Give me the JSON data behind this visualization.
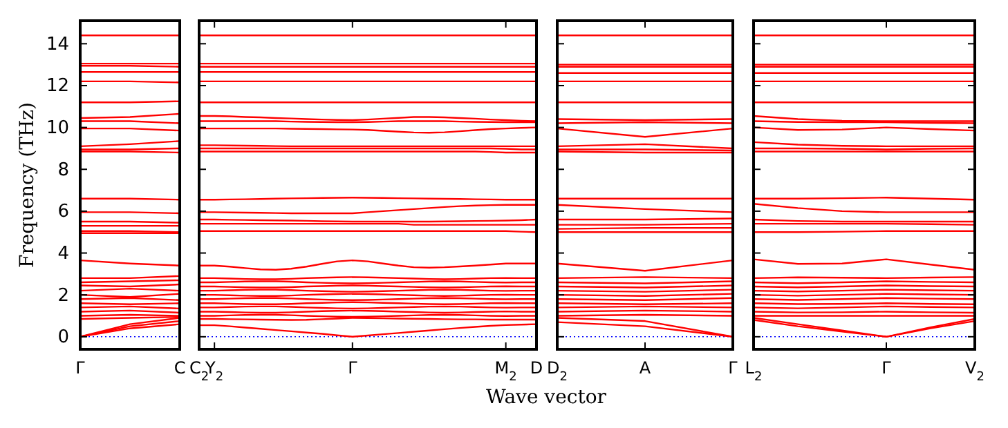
{
  "chart_data": [
    {
      "type": "line",
      "color": "#ff0000",
      "ylabel": "Frequency (THz)",
      "categories": [
        "Γ",
        null,
        "C"
      ],
      "ylim": [
        -0.6,
        15.1
      ],
      "yticks": [
        0,
        2,
        4,
        6,
        8,
        10,
        12,
        14
      ],
      "ref_lines": [
        {
          "axis": "y",
          "value": 0,
          "color": "#0000ff",
          "line_style": "dotted"
        }
      ],
      "series": [
        {
          "values": [
            14.4,
            14.4,
            14.4
          ]
        },
        {
          "values": [
            13.05,
            13.05,
            13.05
          ]
        },
        {
          "values": [
            12.95,
            12.95,
            12.9
          ]
        },
        {
          "values": [
            12.65,
            12.65,
            12.65
          ]
        },
        {
          "values": [
            12.2,
            12.2,
            12.15
          ]
        },
        {
          "values": [
            11.2,
            11.2,
            11.25
          ]
        },
        {
          "values": [
            10.45,
            10.5,
            10.65
          ]
        },
        {
          "values": [
            10.3,
            10.3,
            10.2
          ]
        },
        {
          "values": [
            9.95,
            9.95,
            9.85
          ]
        },
        {
          "values": [
            9.1,
            9.2,
            9.35
          ]
        },
        {
          "values": [
            8.95,
            8.95,
            9.0
          ]
        },
        {
          "values": [
            8.85,
            8.85,
            8.8
          ]
        },
        {
          "values": [
            6.6,
            6.6,
            6.55
          ]
        },
        {
          "values": [
            5.95,
            5.95,
            5.9
          ]
        },
        {
          "values": [
            5.5,
            5.5,
            5.45
          ]
        },
        {
          "values": [
            5.3,
            5.3,
            5.3
          ]
        },
        {
          "values": [
            5.05,
            5.05,
            5.0
          ]
        },
        {
          "values": [
            4.95,
            4.95,
            4.95
          ]
        },
        {
          "values": [
            3.65,
            3.5,
            3.4
          ]
        },
        {
          "values": [
            2.8,
            2.8,
            2.9
          ]
        },
        {
          "values": [
            2.6,
            2.65,
            2.7
          ]
        },
        {
          "values": [
            2.45,
            2.4,
            2.5
          ]
        },
        {
          "values": [
            2.2,
            2.3,
            2.2
          ]
        },
        {
          "values": [
            2.0,
            1.9,
            2.05
          ]
        },
        {
          "values": [
            1.8,
            1.85,
            1.75
          ]
        },
        {
          "values": [
            1.6,
            1.55,
            1.6
          ]
        },
        {
          "values": [
            1.4,
            1.45,
            1.35
          ]
        },
        {
          "values": [
            1.2,
            1.25,
            1.15
          ]
        },
        {
          "values": [
            1.0,
            1.05,
            1.0
          ]
        },
        {
          "values": [
            0.85,
            0.9,
            0.95
          ]
        },
        {
          "values": [
            0,
            0.4,
            0.6
          ]
        },
        {
          "values": [
            0,
            0.5,
            0.75
          ]
        },
        {
          "values": [
            0,
            0.6,
            0.9
          ]
        }
      ]
    },
    {
      "type": "line",
      "color": "#ff0000",
      "xlabel": "Wave vector",
      "tick_labels": "x",
      "categories": [
        "C$_{2}$",
        "Y$_{2}$",
        null,
        null,
        null,
        null,
        null,
        null,
        null,
        null,
        "Γ",
        null,
        null,
        null,
        null,
        null,
        null,
        null,
        null,
        null,
        "M$_{2}$",
        null,
        "D"
      ],
      "ylim": [
        -0.6,
        15.1
      ],
      "yticks": [
        0,
        2,
        4,
        6,
        8,
        10,
        12,
        14
      ],
      "ref_lines": [
        {
          "axis": "y",
          "value": 0,
          "color": "#0000ff",
          "line_style": "dotted"
        }
      ],
      "series": [
        {
          "values": [
            14.4,
            14.4,
            14.4,
            14.4,
            14.4,
            14.4,
            14.4,
            14.4,
            14.4,
            14.4,
            14.4,
            14.4,
            14.4,
            14.4,
            14.4,
            14.4,
            14.4,
            14.4,
            14.4,
            14.4,
            14.4,
            14.4,
            14.4
          ]
        },
        {
          "values": [
            13.05,
            13.05,
            13.05,
            13.05,
            13.05,
            13.05,
            13.05,
            13.05,
            13.05,
            13.05,
            13.05,
            13.05,
            13.05,
            13.05,
            13.05,
            13.05,
            13.05,
            13.05,
            13.05,
            13.05,
            13.05,
            13.05,
            13.05
          ]
        },
        {
          "values": [
            12.9,
            12.9,
            12.9,
            12.9,
            12.9,
            12.9,
            12.9,
            12.9,
            12.9,
            12.9,
            12.9,
            12.9,
            12.9,
            12.9,
            12.9,
            12.9,
            12.9,
            12.9,
            12.9,
            12.9,
            12.9,
            12.9,
            12.9
          ]
        },
        {
          "values": [
            12.65,
            12.65,
            12.65,
            12.65,
            12.65,
            12.65,
            12.65,
            12.65,
            12.65,
            12.65,
            12.65,
            12.65,
            12.65,
            12.65,
            12.65,
            12.65,
            12.65,
            12.65,
            12.65,
            12.65,
            12.65,
            12.65,
            12.65
          ]
        },
        {
          "values": [
            12.2,
            12.2,
            12.2,
            12.2,
            12.2,
            12.2,
            12.2,
            12.2,
            12.2,
            12.2,
            12.2,
            12.2,
            12.2,
            12.2,
            12.2,
            12.2,
            12.2,
            12.2,
            12.2,
            12.2,
            12.2,
            12.2,
            12.2
          ]
        },
        {
          "values": [
            11.2,
            11.2,
            11.2,
            11.2,
            11.2,
            11.2,
            11.2,
            11.2,
            11.2,
            11.2,
            11.2,
            11.2,
            11.2,
            11.2,
            11.2,
            11.2,
            11.2,
            11.2,
            11.2,
            11.2,
            11.2,
            11.2,
            11.2
          ]
        },
        {
          "values": [
            10.55,
            10.55,
            10.53,
            10.5,
            10.48,
            10.45,
            10.43,
            10.4,
            10.38,
            10.36,
            10.35,
            10.38,
            10.42,
            10.46,
            10.5,
            10.5,
            10.48,
            10.45,
            10.42,
            10.38,
            10.35,
            10.32,
            10.3
          ]
        },
        {
          "values": [
            10.3,
            10.3,
            10.3,
            10.3,
            10.3,
            10.3,
            10.28,
            10.27,
            10.26,
            10.25,
            10.25,
            10.26,
            10.28,
            10.3,
            10.3,
            10.3,
            10.3,
            10.28,
            10.27,
            10.26,
            10.25,
            10.25,
            10.25
          ]
        },
        {
          "values": [
            9.95,
            9.95,
            9.95,
            9.95,
            9.95,
            9.95,
            9.94,
            9.93,
            9.92,
            9.91,
            9.9,
            9.88,
            9.84,
            9.8,
            9.76,
            9.75,
            9.77,
            9.82,
            9.87,
            9.92,
            9.95,
            9.98,
            10.0
          ]
        },
        {
          "values": [
            9.15,
            9.15,
            9.14,
            9.13,
            9.12,
            9.11,
            9.1,
            9.1,
            9.1,
            9.1,
            9.1,
            9.1,
            9.1,
            9.1,
            9.1,
            9.1,
            9.1,
            9.1,
            9.1,
            9.1,
            9.1,
            9.1,
            9.1
          ]
        },
        {
          "values": [
            9.0,
            9.0,
            9.0,
            9.0,
            9.0,
            9.0,
            9.0,
            9.0,
            9.0,
            9.0,
            9.0,
            9.0,
            9.0,
            9.0,
            9.0,
            9.0,
            9.0,
            9.0,
            9.0,
            9.0,
            8.98,
            8.95,
            8.95
          ]
        },
        {
          "values": [
            8.85,
            8.85,
            8.85,
            8.85,
            8.85,
            8.85,
            8.85,
            8.85,
            8.85,
            8.85,
            8.85,
            8.85,
            8.85,
            8.85,
            8.85,
            8.85,
            8.85,
            8.85,
            8.85,
            8.83,
            8.8,
            8.8,
            8.8
          ]
        },
        {
          "values": [
            6.55,
            6.55,
            6.56,
            6.57,
            6.58,
            6.6,
            6.61,
            6.62,
            6.63,
            6.64,
            6.65,
            6.64,
            6.63,
            6.62,
            6.61,
            6.6,
            6.59,
            6.58,
            6.57,
            6.56,
            6.55,
            6.55,
            6.55
          ]
        },
        {
          "values": [
            5.95,
            5.95,
            5.94,
            5.93,
            5.92,
            5.91,
            5.9,
            5.9,
            5.9,
            5.9,
            5.9,
            5.95,
            6.0,
            6.05,
            6.1,
            6.15,
            6.2,
            6.24,
            6.27,
            6.29,
            6.3,
            6.3,
            6.3
          ]
        },
        {
          "values": [
            5.6,
            5.6,
            5.59,
            5.58,
            5.57,
            5.56,
            5.55,
            5.54,
            5.52,
            5.51,
            5.5,
            5.5,
            5.5,
            5.5,
            5.5,
            5.5,
            5.51,
            5.52,
            5.53,
            5.54,
            5.55,
            5.57,
            5.6
          ]
        },
        {
          "values": [
            5.4,
            5.4,
            5.4,
            5.4,
            5.4,
            5.4,
            5.4,
            5.4,
            5.4,
            5.4,
            5.4,
            5.4,
            5.4,
            5.4,
            5.35,
            5.35,
            5.35,
            5.35,
            5.35,
            5.35,
            5.35,
            5.35,
            5.35
          ]
        },
        {
          "values": [
            5.05,
            5.05,
            5.05,
            5.05,
            5.05,
            5.05,
            5.05,
            5.05,
            5.05,
            5.05,
            5.05,
            5.05,
            5.05,
            5.05,
            5.05,
            5.05,
            5.05,
            5.05,
            5.05,
            5.05,
            5.05,
            5.02,
            5.0
          ]
        },
        {
          "values": [
            3.4,
            3.4,
            3.35,
            3.28,
            3.22,
            3.2,
            3.25,
            3.35,
            3.48,
            3.6,
            3.65,
            3.6,
            3.5,
            3.4,
            3.32,
            3.3,
            3.32,
            3.36,
            3.4,
            3.45,
            3.5,
            3.5,
            3.5
          ]
        },
        {
          "values": [
            2.8,
            2.8,
            2.78,
            2.76,
            2.75,
            2.75,
            2.77,
            2.8,
            2.82,
            2.84,
            2.85,
            2.84,
            2.82,
            2.8,
            2.78,
            2.76,
            2.75,
            2.76,
            2.78,
            2.8,
            2.81,
            2.8,
            2.8
          ]
        },
        {
          "values": [
            2.6,
            2.6,
            2.62,
            2.64,
            2.65,
            2.65,
            2.63,
            2.6,
            2.58,
            2.56,
            2.55,
            2.56,
            2.58,
            2.6,
            2.62,
            2.64,
            2.65,
            2.64,
            2.62,
            2.6,
            2.59,
            2.6,
            2.6
          ]
        },
        {
          "values": [
            2.4,
            2.4,
            2.38,
            2.36,
            2.35,
            2.35,
            2.37,
            2.4,
            2.42,
            2.44,
            2.45,
            2.44,
            2.42,
            2.4,
            2.38,
            2.36,
            2.35,
            2.36,
            2.38,
            2.4,
            2.41,
            2.4,
            2.4
          ]
        },
        {
          "values": [
            2.2,
            2.2,
            2.22,
            2.24,
            2.25,
            2.25,
            2.23,
            2.2,
            2.18,
            2.16,
            2.15,
            2.16,
            2.18,
            2.2,
            2.22,
            2.24,
            2.25,
            2.24,
            2.22,
            2.2,
            2.19,
            2.2,
            2.2
          ]
        },
        {
          "values": [
            2.0,
            2.0,
            1.98,
            1.96,
            1.95,
            1.95,
            1.97,
            2.0,
            2.02,
            2.04,
            2.05,
            2.04,
            2.02,
            2.0,
            1.98,
            1.96,
            1.95,
            1.96,
            1.98,
            2.0,
            2.01,
            2.0,
            2.0
          ]
        },
        {
          "values": [
            1.8,
            1.8,
            1.82,
            1.84,
            1.85,
            1.85,
            1.83,
            1.8,
            1.78,
            1.76,
            1.75,
            1.76,
            1.78,
            1.8,
            1.82,
            1.84,
            1.85,
            1.84,
            1.82,
            1.8,
            1.79,
            1.8,
            1.8
          ]
        },
        {
          "values": [
            1.6,
            1.6,
            1.58,
            1.56,
            1.55,
            1.55,
            1.57,
            1.6,
            1.62,
            1.64,
            1.65,
            1.64,
            1.62,
            1.6,
            1.58,
            1.56,
            1.55,
            1.56,
            1.58,
            1.6,
            1.61,
            1.6,
            1.6
          ]
        },
        {
          "values": [
            1.4,
            1.4,
            1.42,
            1.44,
            1.45,
            1.45,
            1.43,
            1.4,
            1.38,
            1.36,
            1.35,
            1.36,
            1.38,
            1.4,
            1.42,
            1.44,
            1.45,
            1.44,
            1.42,
            1.4,
            1.39,
            1.4,
            1.4
          ]
        },
        {
          "values": [
            1.2,
            1.2,
            1.18,
            1.16,
            1.15,
            1.15,
            1.17,
            1.2,
            1.22,
            1.24,
            1.25,
            1.24,
            1.22,
            1.2,
            1.18,
            1.16,
            1.15,
            1.16,
            1.18,
            1.2,
            1.21,
            1.2,
            1.2
          ]
        },
        {
          "values": [
            1.0,
            1.0,
            1.02,
            1.04,
            1.05,
            1.05,
            1.03,
            1.0,
            0.98,
            0.96,
            0.95,
            0.96,
            0.98,
            1.0,
            1.02,
            1.04,
            1.05,
            1.04,
            1.02,
            1.0,
            0.99,
            1.0,
            1.0
          ]
        },
        {
          "values": [
            0.85,
            0.85,
            0.84,
            0.83,
            0.82,
            0.81,
            0.8,
            0.81,
            0.84,
            0.87,
            0.9,
            0.89,
            0.88,
            0.87,
            0.86,
            0.85,
            0.84,
            0.83,
            0.83,
            0.82,
            0.82,
            0.82,
            0.82
          ]
        },
        {
          "values": [
            0.55,
            0.55,
            0.5,
            0.44,
            0.38,
            0.32,
            0.26,
            0.2,
            0.14,
            0.07,
            0,
            0.06,
            0.12,
            0.18,
            0.24,
            0.3,
            0.36,
            0.42,
            0.47,
            0.52,
            0.56,
            0.58,
            0.6
          ]
        }
      ]
    },
    {
      "type": "line",
      "color": "#ff0000",
      "tick_labels": "x",
      "categories": [
        "D$_{2}$",
        "A",
        "Γ"
      ],
      "ylim": [
        -0.6,
        15.1
      ],
      "yticks": [
        0,
        2,
        4,
        6,
        8,
        10,
        12,
        14
      ],
      "ref_lines": [
        {
          "axis": "y",
          "value": 0,
          "color": "#0000ff",
          "line_style": "dotted"
        }
      ],
      "series": [
        {
          "values": [
            14.4,
            14.4,
            14.4
          ]
        },
        {
          "values": [
            13.0,
            13.0,
            13.0
          ]
        },
        {
          "values": [
            12.9,
            12.9,
            12.9
          ]
        },
        {
          "values": [
            12.6,
            12.6,
            12.6
          ]
        },
        {
          "values": [
            12.2,
            12.2,
            12.2
          ]
        },
        {
          "values": [
            11.2,
            11.2,
            11.2
          ]
        },
        {
          "values": [
            10.4,
            10.35,
            10.4
          ]
        },
        {
          "values": [
            10.2,
            10.25,
            10.2
          ]
        },
        {
          "values": [
            9.95,
            9.55,
            9.95
          ]
        },
        {
          "values": [
            9.1,
            9.2,
            9.0
          ]
        },
        {
          "values": [
            8.95,
            8.95,
            8.9
          ]
        },
        {
          "values": [
            8.85,
            8.8,
            8.8
          ]
        },
        {
          "values": [
            6.6,
            6.6,
            6.6
          ]
        },
        {
          "values": [
            6.3,
            6.1,
            5.95
          ]
        },
        {
          "values": [
            5.6,
            5.6,
            5.65
          ]
        },
        {
          "values": [
            5.35,
            5.35,
            5.4
          ]
        },
        {
          "values": [
            5.15,
            5.2,
            5.2
          ]
        },
        {
          "values": [
            5.0,
            5.0,
            5.0
          ]
        },
        {
          "values": [
            3.5,
            3.15,
            3.65
          ]
        },
        {
          "values": [
            2.8,
            2.85,
            2.8
          ]
        },
        {
          "values": [
            2.6,
            2.55,
            2.65
          ]
        },
        {
          "values": [
            2.4,
            2.35,
            2.45
          ]
        },
        {
          "values": [
            2.2,
            2.15,
            2.25
          ]
        },
        {
          "values": [
            2.0,
            1.95,
            2.05
          ]
        },
        {
          "values": [
            1.8,
            1.75,
            1.85
          ]
        },
        {
          "values": [
            1.6,
            1.55,
            1.6
          ]
        },
        {
          "values": [
            1.4,
            1.45,
            1.4
          ]
        },
        {
          "values": [
            1.2,
            1.25,
            1.2
          ]
        },
        {
          "values": [
            1.0,
            1.05,
            1.0
          ]
        },
        {
          "values": [
            0.9,
            0.75,
            0
          ]
        },
        {
          "values": [
            0.7,
            0.5,
            0
          ]
        }
      ]
    },
    {
      "type": "line",
      "color": "#ff0000",
      "tick_labels": "x",
      "categories": [
        "L$_{2}$",
        null,
        null,
        "Γ",
        null,
        "V$_{2}$"
      ],
      "ylim": [
        -0.6,
        15.1
      ],
      "yticks": [
        0,
        2,
        4,
        6,
        8,
        10,
        12,
        14
      ],
      "ref_lines": [
        {
          "axis": "y",
          "value": 0,
          "color": "#0000ff",
          "line_style": "dotted"
        }
      ],
      "series": [
        {
          "values": [
            14.4,
            14.4,
            14.4,
            14.4,
            14.4,
            14.4
          ]
        },
        {
          "values": [
            13.0,
            13.0,
            13.0,
            13.0,
            13.0,
            13.0
          ]
        },
        {
          "values": [
            12.9,
            12.9,
            12.9,
            12.9,
            12.9,
            12.9
          ]
        },
        {
          "values": [
            12.6,
            12.6,
            12.6,
            12.6,
            12.6,
            12.6
          ]
        },
        {
          "values": [
            12.2,
            12.2,
            12.2,
            12.2,
            12.2,
            12.2
          ]
        },
        {
          "values": [
            11.2,
            11.2,
            11.2,
            11.2,
            11.2,
            11.2
          ]
        },
        {
          "values": [
            10.55,
            10.4,
            10.32,
            10.3,
            10.3,
            10.3
          ]
        },
        {
          "values": [
            10.3,
            10.26,
            10.25,
            10.25,
            10.22,
            10.2
          ]
        },
        {
          "values": [
            10.0,
            9.88,
            9.9,
            10.0,
            9.92,
            9.85
          ]
        },
        {
          "values": [
            9.3,
            9.18,
            9.12,
            9.1,
            9.1,
            9.1
          ]
        },
        {
          "values": [
            9.0,
            9.0,
            8.98,
            8.95,
            8.98,
            9.0
          ]
        },
        {
          "values": [
            8.85,
            8.85,
            8.85,
            8.85,
            8.85,
            8.85
          ]
        },
        {
          "values": [
            6.6,
            6.6,
            6.62,
            6.65,
            6.6,
            6.55
          ]
        },
        {
          "values": [
            6.35,
            6.15,
            6.0,
            5.95,
            5.95,
            5.95
          ]
        },
        {
          "values": [
            5.6,
            5.53,
            5.5,
            5.5,
            5.5,
            5.5
          ]
        },
        {
          "values": [
            5.4,
            5.4,
            5.4,
            5.4,
            5.38,
            5.35
          ]
        },
        {
          "values": [
            5.0,
            5.0,
            5.02,
            5.05,
            5.05,
            5.05
          ]
        },
        {
          "values": [
            3.7,
            3.48,
            3.5,
            3.7,
            3.45,
            3.2
          ]
        },
        {
          "values": [
            2.8,
            2.84,
            2.82,
            2.8,
            2.83,
            2.85
          ]
        },
        {
          "values": [
            2.6,
            2.56,
            2.6,
            2.65,
            2.62,
            2.6
          ]
        },
        {
          "values": [
            2.4,
            2.36,
            2.4,
            2.45,
            2.42,
            2.4
          ]
        },
        {
          "values": [
            2.2,
            2.16,
            2.2,
            2.25,
            2.22,
            2.2
          ]
        },
        {
          "values": [
            2.0,
            1.96,
            2.0,
            2.05,
            2.02,
            2.0
          ]
        },
        {
          "values": [
            1.8,
            1.76,
            1.8,
            1.85,
            1.82,
            1.8
          ]
        },
        {
          "values": [
            1.6,
            1.56,
            1.57,
            1.6,
            1.57,
            1.55
          ]
        },
        {
          "values": [
            1.4,
            1.36,
            1.4,
            1.45,
            1.42,
            1.4
          ]
        },
        {
          "values": [
            1.2,
            1.16,
            1.17,
            1.2,
            1.17,
            1.15
          ]
        },
        {
          "values": [
            1.0,
            1.0,
            1.0,
            1.0,
            1.0,
            1.0
          ]
        },
        {
          "values": [
            0.9,
            0.6,
            0.3,
            0,
            0.45,
            0.85
          ]
        },
        {
          "values": [
            0.8,
            0.5,
            0.25,
            0,
            0.4,
            0.75
          ]
        }
      ]
    }
  ]
}
